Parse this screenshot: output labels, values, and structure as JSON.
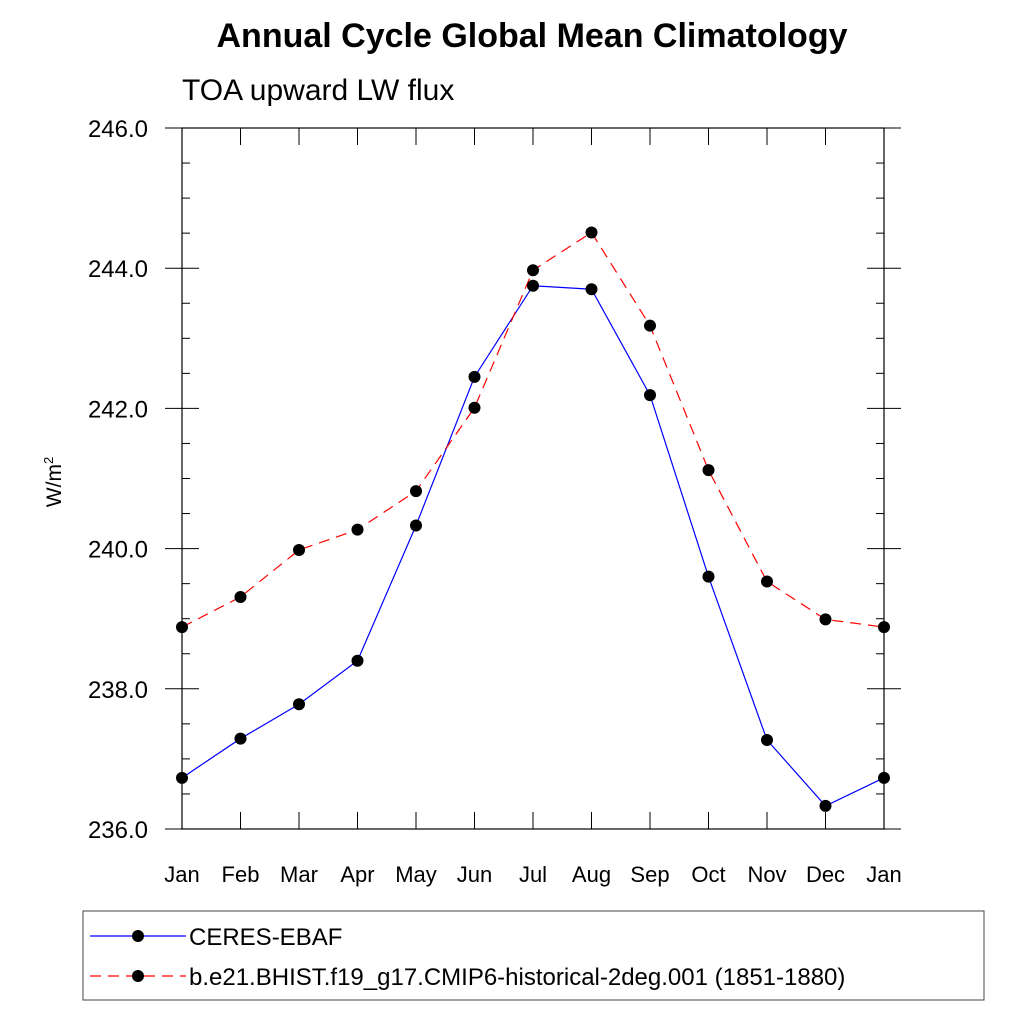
{
  "chart_data": {
    "type": "line",
    "title": "Annual Cycle Global Mean Climatology",
    "subtitle": "TOA upward LW flux",
    "ylabel": "W/m",
    "ylabel_superscript": "2",
    "ylim": [
      236.0,
      246.0
    ],
    "yticks": [
      "236.0",
      "238.0",
      "240.0",
      "242.0",
      "244.0",
      "246.0"
    ],
    "categories": [
      "Jan",
      "Feb",
      "Mar",
      "Apr",
      "May",
      "Jun",
      "Jul",
      "Aug",
      "Sep",
      "Oct",
      "Nov",
      "Dec",
      "Jan"
    ],
    "series": [
      {
        "name": "CERES-EBAF",
        "color": "#0000ff",
        "dash": "solid",
        "values": [
          236.73,
          237.29,
          237.78,
          238.4,
          240.33,
          242.45,
          243.75,
          243.7,
          242.19,
          239.6,
          237.27,
          236.33,
          236.73
        ]
      },
      {
        "name": "b.e21.BHIST.f19_g17.CMIP6-historical-2deg.001 (1851-1880)",
        "color": "#ff0000",
        "dash": "dashed",
        "values": [
          238.88,
          239.31,
          239.98,
          240.27,
          240.82,
          242.01,
          243.97,
          244.51,
          243.18,
          241.12,
          239.53,
          238.99,
          238.88
        ]
      }
    ],
    "grid": false,
    "legend_placement": "bottom"
  }
}
